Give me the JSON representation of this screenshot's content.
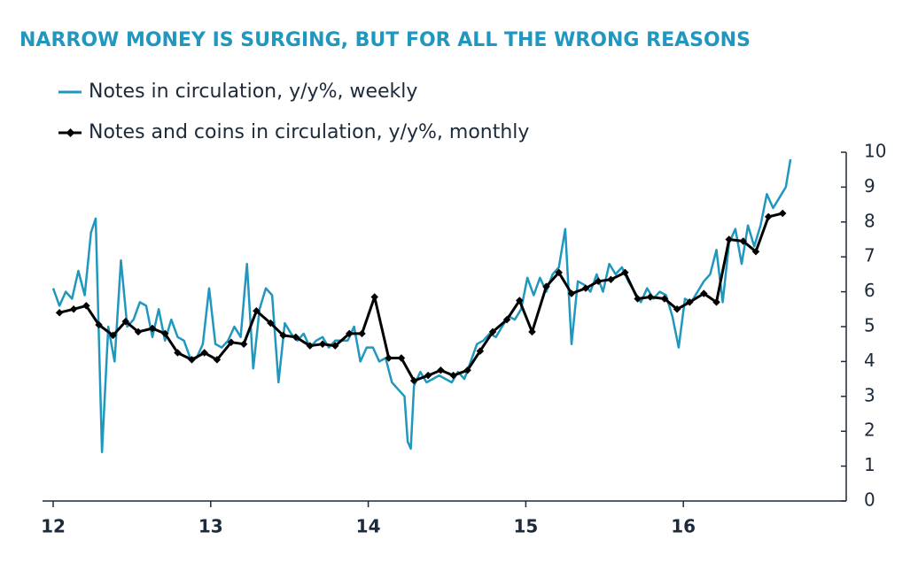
{
  "chart_data": {
    "type": "line",
    "title": "NARROW MONEY IS SURGING, BUT FOR ALL THE WRONG REASONS",
    "xlim": [
      12,
      17
    ],
    "xticks": [
      12,
      13,
      14,
      15,
      16
    ],
    "ylim": [
      0,
      10
    ],
    "yticks": [
      0,
      1,
      2,
      3,
      4,
      5,
      6,
      7,
      8,
      9,
      10
    ],
    "series": [
      {
        "name": "Notes in circulation, y/y%, weekly",
        "color": "#1f97be",
        "marker": false,
        "x": [
          12.0,
          12.04,
          12.08,
          12.12,
          12.16,
          12.2,
          12.24,
          12.27,
          12.31,
          12.35,
          12.39,
          12.43,
          12.47,
          12.51,
          12.55,
          12.59,
          12.63,
          12.67,
          12.71,
          12.75,
          12.79,
          12.83,
          12.87,
          12.91,
          12.95,
          12.99,
          13.03,
          13.07,
          13.11,
          13.15,
          13.19,
          13.23,
          13.27,
          13.31,
          13.35,
          13.39,
          13.43,
          13.47,
          13.51,
          13.55,
          13.59,
          13.63,
          13.67,
          13.71,
          13.75,
          13.79,
          13.83,
          13.87,
          13.91,
          13.95,
          13.99,
          14.03,
          14.07,
          14.11,
          14.15,
          14.19,
          14.23,
          14.25,
          14.27,
          14.29,
          14.33,
          14.37,
          14.41,
          14.45,
          14.49,
          14.53,
          14.57,
          14.61,
          14.65,
          14.69,
          14.73,
          14.77,
          14.81,
          14.85,
          14.89,
          14.93,
          14.97,
          15.01,
          15.05,
          15.09,
          15.13,
          15.17,
          15.21,
          15.25,
          15.29,
          15.33,
          15.37,
          15.41,
          15.45,
          15.49,
          15.53,
          15.57,
          15.61,
          15.65,
          15.69,
          15.73,
          15.77,
          15.81,
          15.85,
          15.89,
          15.93,
          15.97,
          16.01,
          16.05,
          16.09,
          16.13,
          16.17,
          16.21,
          16.25,
          16.29,
          16.33,
          16.37,
          16.41,
          16.45,
          16.49,
          16.53,
          16.57,
          16.61,
          16.65,
          16.68
        ],
        "values": [
          6.1,
          5.6,
          6.0,
          5.8,
          6.6,
          5.9,
          7.7,
          8.1,
          1.4,
          5.0,
          4.0,
          6.9,
          5.0,
          5.2,
          5.7,
          5.6,
          4.7,
          5.5,
          4.6,
          5.2,
          4.7,
          4.6,
          4.1,
          4.1,
          4.5,
          6.1,
          4.5,
          4.4,
          4.6,
          5.0,
          4.7,
          6.8,
          3.8,
          5.5,
          6.1,
          5.9,
          3.4,
          5.1,
          4.8,
          4.6,
          4.8,
          4.4,
          4.6,
          4.7,
          4.4,
          4.6,
          4.6,
          4.6,
          5.0,
          4.0,
          4.4,
          4.4,
          4.0,
          4.1,
          3.4,
          3.2,
          3.0,
          1.7,
          1.5,
          3.3,
          3.7,
          3.4,
          3.5,
          3.6,
          3.5,
          3.4,
          3.7,
          3.5,
          4.0,
          4.5,
          4.6,
          4.8,
          4.7,
          5.0,
          5.3,
          5.2,
          5.5,
          6.4,
          5.9,
          6.4,
          6.0,
          6.5,
          6.7,
          7.8,
          4.5,
          6.3,
          6.2,
          6.0,
          6.5,
          6.0,
          6.8,
          6.5,
          6.7,
          6.3,
          6.0,
          5.7,
          6.1,
          5.8,
          6.0,
          5.9,
          5.3,
          4.4,
          5.8,
          5.7,
          6.0,
          6.3,
          6.5,
          7.2,
          5.7,
          7.4,
          7.8,
          6.8,
          7.9,
          7.3,
          7.9,
          8.8,
          8.4,
          8.7,
          9.0,
          9.8
        ]
      },
      {
        "name": "Notes and coins in circulation, y/y%, monthly",
        "color": "#000000",
        "marker": true,
        "x": [
          12.04,
          12.13,
          12.21,
          12.29,
          12.38,
          12.46,
          12.54,
          12.63,
          12.71,
          12.79,
          12.88,
          12.96,
          13.04,
          13.13,
          13.21,
          13.29,
          13.38,
          13.46,
          13.54,
          13.63,
          13.71,
          13.79,
          13.88,
          13.96,
          14.04,
          14.13,
          14.21,
          14.29,
          14.38,
          14.46,
          14.54,
          14.63,
          14.71,
          14.79,
          14.88,
          14.96,
          15.04,
          15.13,
          15.21,
          15.29,
          15.38,
          15.46,
          15.54,
          15.63,
          15.71,
          15.79,
          15.88,
          15.96,
          16.04,
          16.13,
          16.21,
          16.29,
          16.38,
          16.46,
          16.54,
          16.63
        ],
        "values": [
          5.4,
          5.5,
          5.6,
          5.05,
          4.75,
          5.15,
          4.85,
          4.95,
          4.8,
          4.25,
          4.05,
          4.25,
          4.05,
          4.55,
          4.5,
          5.45,
          5.1,
          4.75,
          4.7,
          4.45,
          4.5,
          4.45,
          4.8,
          4.8,
          5.85,
          4.1,
          4.1,
          3.45,
          3.6,
          3.75,
          3.6,
          3.75,
          4.3,
          4.85,
          5.2,
          5.75,
          4.85,
          6.15,
          6.55,
          5.95,
          6.1,
          6.3,
          6.35,
          6.55,
          5.8,
          5.85,
          5.8,
          5.5,
          5.7,
          5.95,
          5.7,
          7.5,
          7.45,
          7.15,
          8.15,
          8.25
        ]
      }
    ]
  }
}
